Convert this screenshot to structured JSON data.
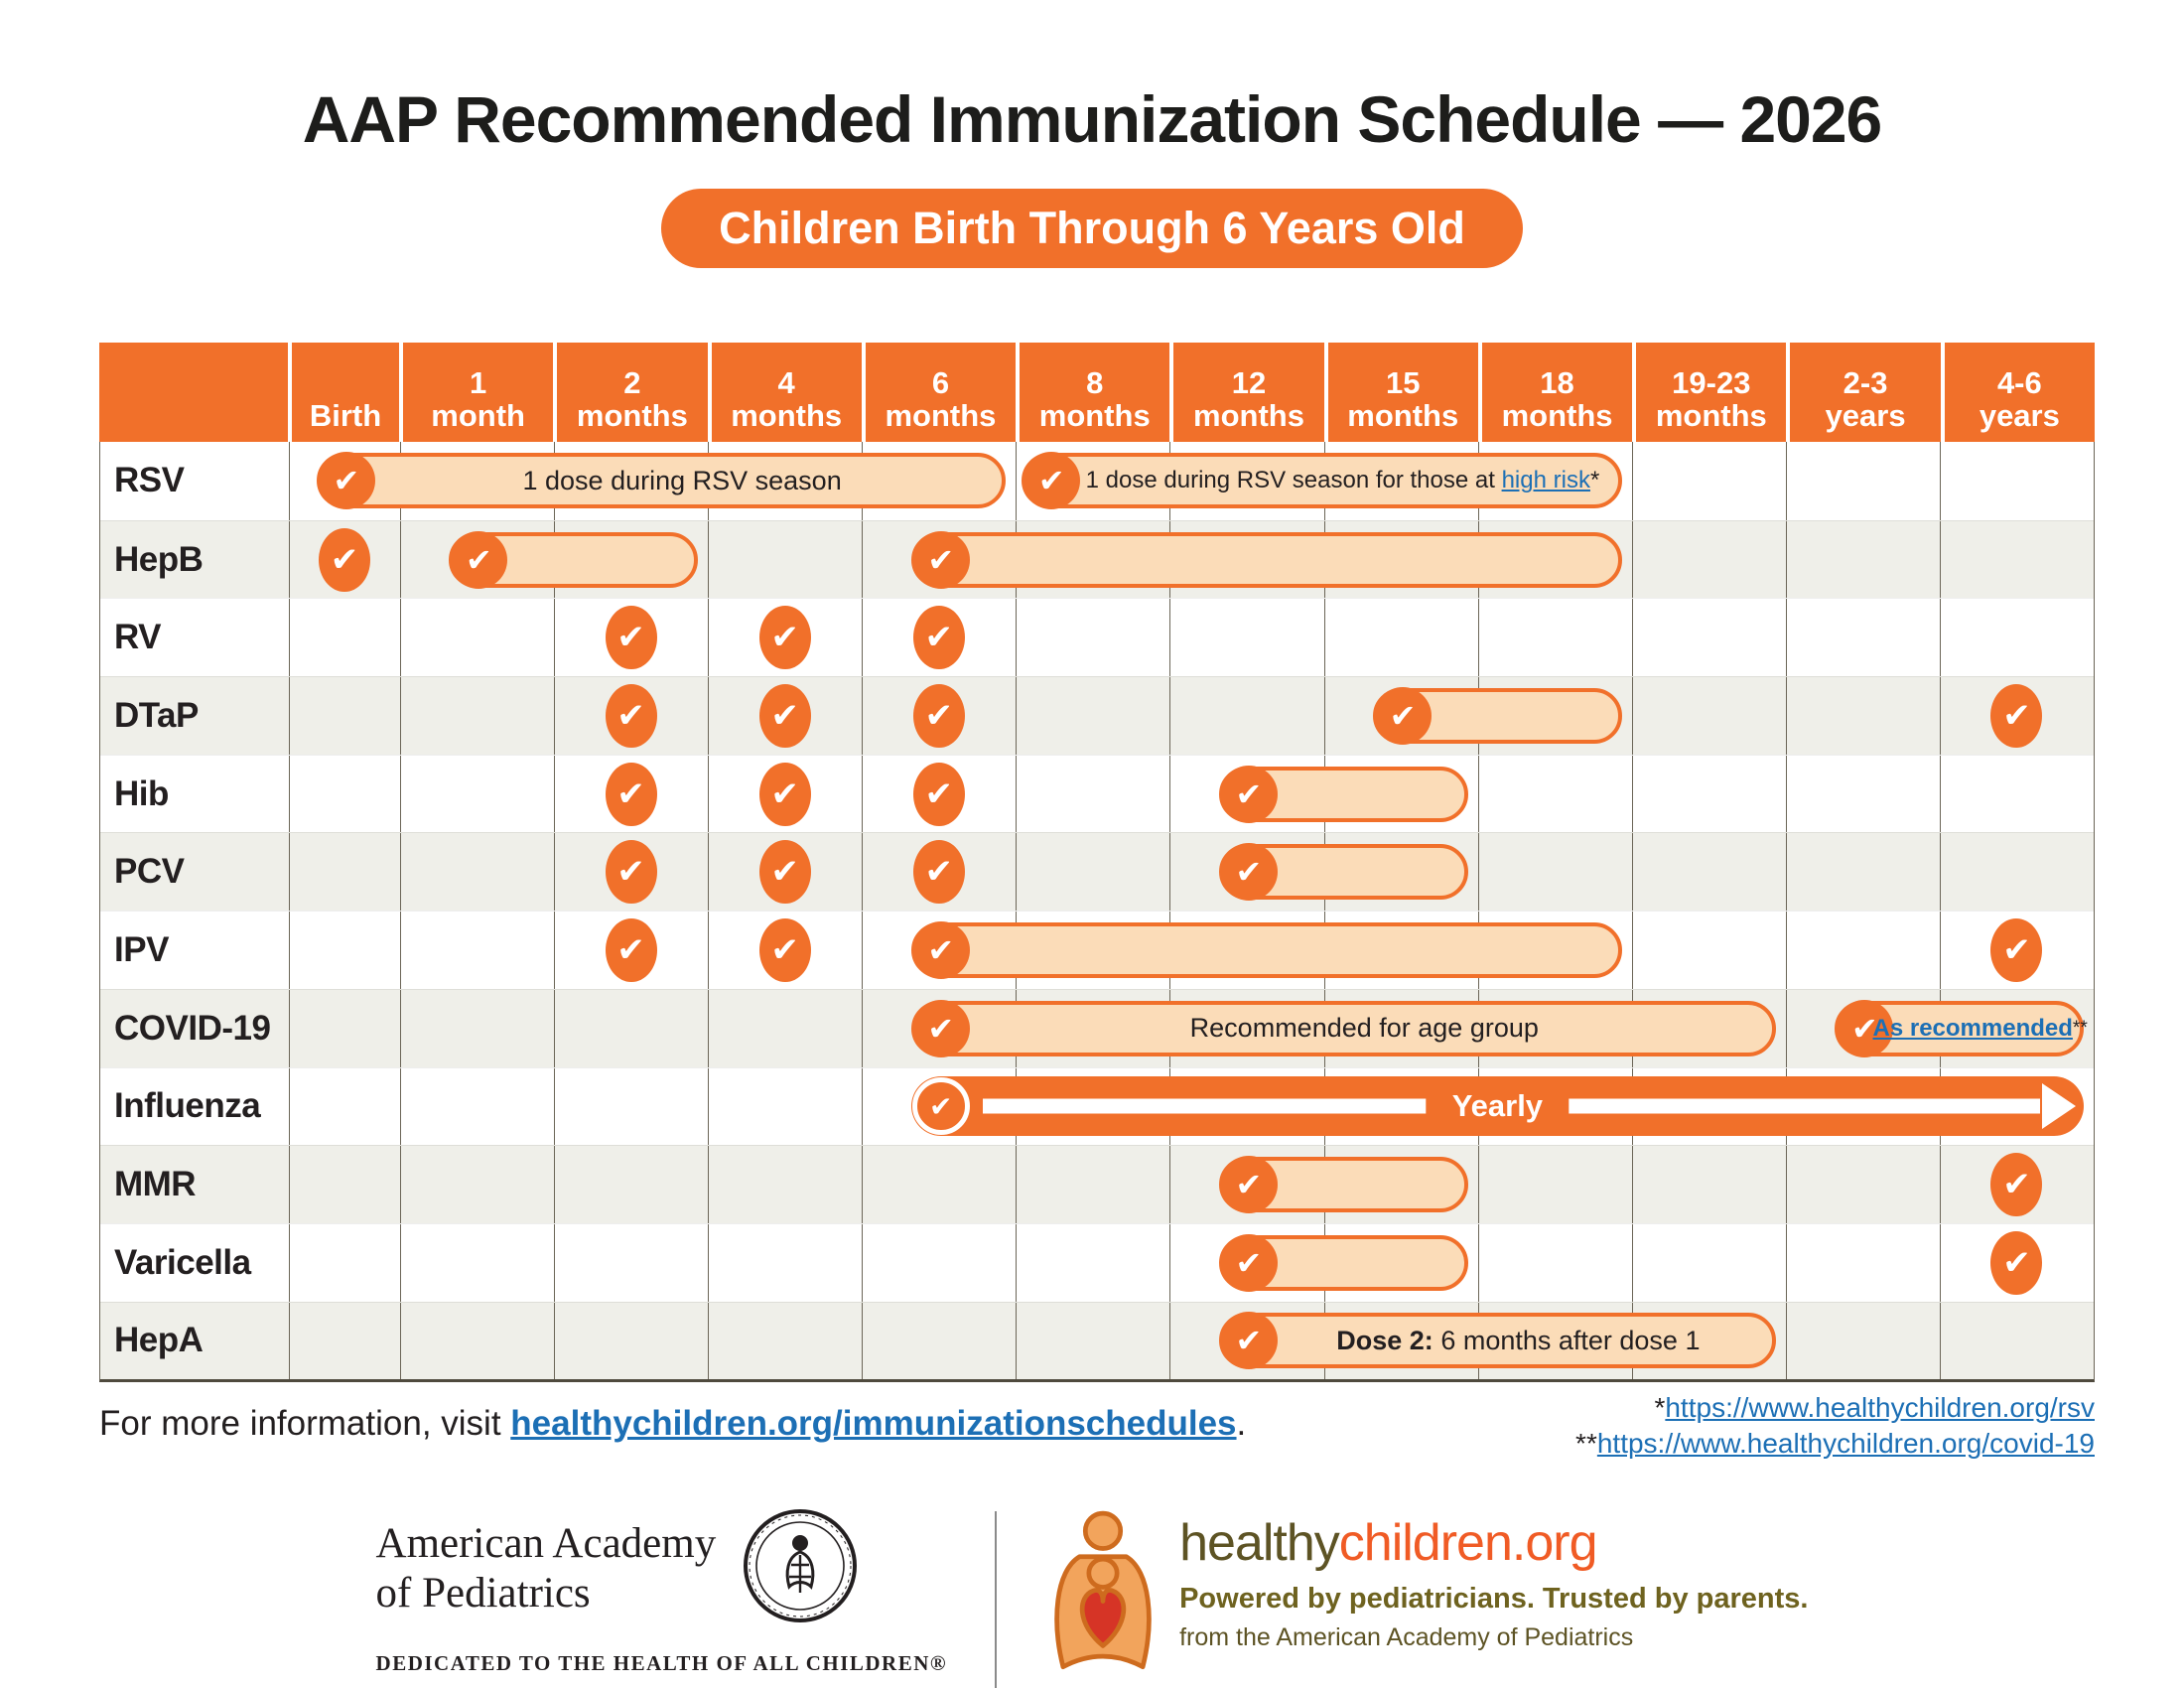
{
  "title": "AAP Recommended Immunization Schedule — 2026",
  "subtitle": "Children Birth Through 6 Years Old",
  "colors": {
    "orange": "#F1702A",
    "peach_fill": "#FBDCB8",
    "alt_row": "#EFEFE9",
    "grid_line": "#6B6557",
    "link_blue": "#1C6FB5",
    "ink": "#231F20",
    "hc_olive": "#5D5324",
    "hc_orange": "#F05B25"
  },
  "chart_data": {
    "type": "table",
    "title": "AAP Recommended Immunization Schedule — 2026",
    "subtitle": "Children Birth Through 6 Years Old",
    "columns": [
      {
        "line1": "Birth",
        "line2": ""
      },
      {
        "line1": "1",
        "line2": "month"
      },
      {
        "line1": "2",
        "line2": "months"
      },
      {
        "line1": "4",
        "line2": "months"
      },
      {
        "line1": "6",
        "line2": "months"
      },
      {
        "line1": "8",
        "line2": "months"
      },
      {
        "line1": "12",
        "line2": "months"
      },
      {
        "line1": "15",
        "line2": "months"
      },
      {
        "line1": "18",
        "line2": "months"
      },
      {
        "line1": "19-23",
        "line2": "months"
      },
      {
        "line1": "2-3",
        "line2": "years"
      },
      {
        "line1": "4-6",
        "line2": "years"
      }
    ],
    "rows": [
      {
        "id": "rsv",
        "label": "RSV",
        "checks": [],
        "bars": [
          {
            "type": "pill",
            "start": 0,
            "end": 4,
            "segments": [
              {
                "text": "1 dose during RSV season",
                "style": "plain"
              }
            ]
          },
          {
            "type": "pill",
            "start": 5,
            "end": 8,
            "align": "left",
            "tight": true,
            "segments": [
              {
                "text": "1 dose during RSV season for those at ",
                "style": "plain"
              },
              {
                "text": "high risk",
                "style": "link"
              },
              {
                "text": "*",
                "style": "plain"
              }
            ]
          }
        ]
      },
      {
        "id": "hepb",
        "label": "HepB",
        "checks": [
          0
        ],
        "bars": [
          {
            "type": "pill",
            "start": 1,
            "end": 2,
            "segments": []
          },
          {
            "type": "pill",
            "start": 4,
            "end": 8,
            "segments": []
          }
        ]
      },
      {
        "id": "rv",
        "label": "RV",
        "checks": [
          2,
          3,
          4
        ],
        "bars": []
      },
      {
        "id": "dtap",
        "label": "DTaP",
        "checks": [
          2,
          3,
          4,
          11
        ],
        "bars": [
          {
            "type": "pill",
            "start": 7,
            "end": 8,
            "segments": []
          }
        ]
      },
      {
        "id": "hib",
        "label": "Hib",
        "checks": [
          2,
          3,
          4
        ],
        "bars": [
          {
            "type": "pill",
            "start": 6,
            "end": 7,
            "segments": []
          }
        ]
      },
      {
        "id": "pcv",
        "label": "PCV",
        "checks": [
          2,
          3,
          4
        ],
        "bars": [
          {
            "type": "pill",
            "start": 6,
            "end": 7,
            "segments": []
          }
        ]
      },
      {
        "id": "ipv",
        "label": "IPV",
        "checks": [
          2,
          3,
          11
        ],
        "bars": [
          {
            "type": "pill",
            "start": 4,
            "end": 8,
            "segments": []
          }
        ]
      },
      {
        "id": "covid-19",
        "label": "COVID-19",
        "checks": [],
        "bars": [
          {
            "type": "pill",
            "start": 4,
            "end": 9,
            "segments": [
              {
                "text": "Recommended for age group",
                "style": "plain"
              }
            ]
          },
          {
            "type": "pill",
            "start": 10,
            "end": 11,
            "tight": true,
            "segments": [
              {
                "text": "As recommended",
                "style": "link-bold"
              },
              {
                "text": "**",
                "style": "sup"
              }
            ]
          }
        ]
      },
      {
        "id": "influenza",
        "label": "Influenza",
        "checks": [],
        "bars": [
          {
            "type": "arrow",
            "start": 4,
            "end": 11,
            "segments": [
              {
                "text": "Yearly",
                "style": "plain"
              }
            ]
          }
        ]
      },
      {
        "id": "mmr",
        "label": "MMR",
        "checks": [
          11
        ],
        "bars": [
          {
            "type": "pill",
            "start": 6,
            "end": 7,
            "segments": []
          }
        ]
      },
      {
        "id": "varicella",
        "label": "Varicella",
        "checks": [
          11
        ],
        "bars": [
          {
            "type": "pill",
            "start": 6,
            "end": 7,
            "segments": []
          }
        ]
      },
      {
        "id": "hepa",
        "label": "HepA",
        "checks": [],
        "bars": [
          {
            "type": "pill",
            "start": 6,
            "end": 9,
            "segments": [
              {
                "text": "Dose 2:",
                "style": "bold"
              },
              {
                "text": " 6 months after dose 1",
                "style": "plain"
              }
            ]
          }
        ]
      }
    ]
  },
  "footer": {
    "info_prefix": "For more information, visit ",
    "info_link": "healthychildren.org/immunizationschedules",
    "info_suffix": ".",
    "footnote1_prefix": "*",
    "footnote1_link": "https://www.healthychildren.org/rsv",
    "footnote2_prefix": "**",
    "footnote2_link": "https://www.healthychildren.org/covid-19"
  },
  "logos": {
    "aap_line1": "American Academy",
    "aap_line2": "of Pediatrics",
    "aap_tagline": "DEDICATED TO THE HEALTH OF ALL CHILDREN®",
    "hc_name_part1": "healthy",
    "hc_name_part2": "children.org",
    "hc_tagline": "Powered by pediatricians. Trusted by parents.",
    "hc_subline": "from the American Academy of Pediatrics"
  }
}
